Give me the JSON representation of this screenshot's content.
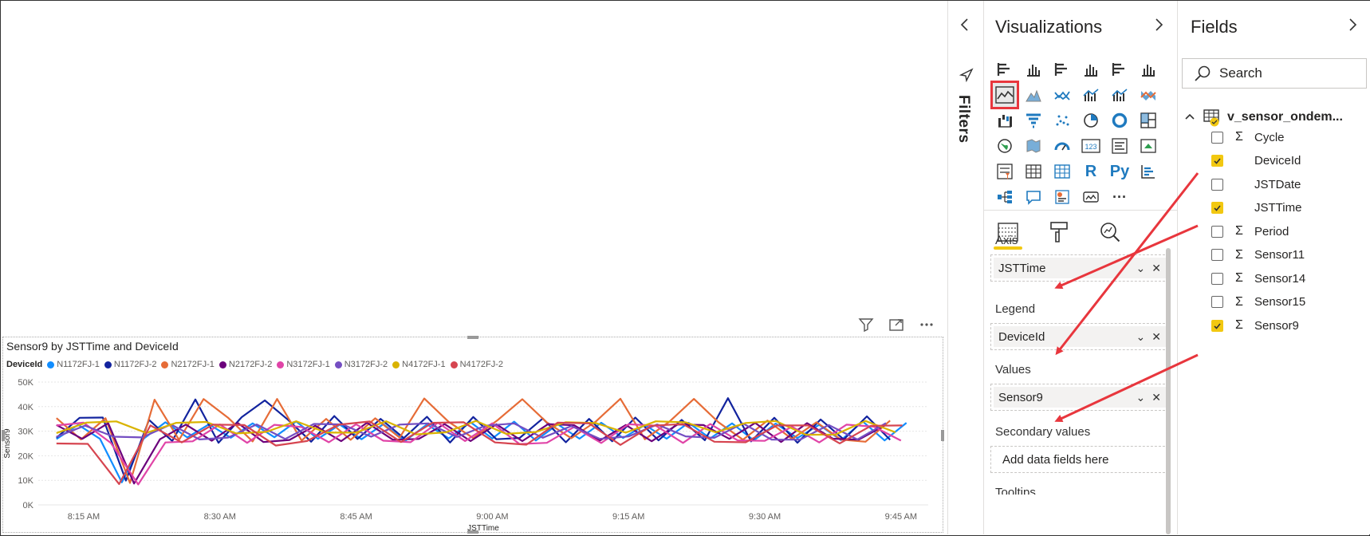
{
  "canvas": {
    "visual_header_icons": [
      "filter-icon",
      "focus-mode-icon",
      "more-options-icon"
    ]
  },
  "chart_data": {
    "type": "line",
    "title": "Sensor9 by JSTTime and DeviceId",
    "legend_title": "DeviceId",
    "legend_placement": "top-left",
    "xlabel": "JSTTime",
    "ylabel": "Sensor9",
    "y_ticks": [
      "0K",
      "10K",
      "20K",
      "30K",
      "40K",
      "50K"
    ],
    "ylim": [
      0,
      50000
    ],
    "x_ticks": [
      "8:15 AM",
      "8:30 AM",
      "8:45 AM",
      "9:00 AM",
      "9:15 AM",
      "9:30 AM",
      "9:45 AM"
    ],
    "xlim": [
      "8:10 AM",
      "9:48 AM"
    ],
    "grid": true,
    "series": [
      {
        "name": "N1172FJ-1",
        "color": "#118dff",
        "baseline": 30000,
        "amplitude": 4000
      },
      {
        "name": "N1172FJ-2",
        "color": "#12239e",
        "baseline": 31000,
        "amplitude": 6000
      },
      {
        "name": "N2172FJ-1",
        "color": "#e66c37",
        "baseline": 30500,
        "amplitude": 5000
      },
      {
        "name": "N2172FJ-2",
        "color": "#6b007b",
        "baseline": 29500,
        "amplitude": 4000
      },
      {
        "name": "N3172FJ-1",
        "color": "#e044a7",
        "baseline": 29000,
        "amplitude": 4500
      },
      {
        "name": "N3172FJ-2",
        "color": "#744ec2",
        "baseline": 30000,
        "amplitude": 3500
      },
      {
        "name": "N4172FJ-1",
        "color": "#d9b300",
        "baseline": 31500,
        "amplitude": 3000
      },
      {
        "name": "N4172FJ-2",
        "color": "#d64550",
        "baseline": 29000,
        "amplitude": 5000
      }
    ],
    "dip": {
      "time": "8:20 AM",
      "value": 8000
    }
  },
  "filters_pane": {
    "label": "Filters",
    "collapse_icon": "chevron-left-icon",
    "icon": "filter-pane-icon"
  },
  "visualizations": {
    "title": "Visualizations",
    "expand_icon": "chevron-right-icon",
    "selected_visual": "line-chart-icon",
    "icons": [
      "stacked-bar-icon",
      "stacked-column-icon",
      "clustered-bar-icon",
      "clustered-column-icon",
      "100-stacked-bar-icon",
      "100-stacked-column-icon",
      "line-chart-icon",
      "area-chart-icon",
      "stacked-area-icon",
      "line-clustered-column-icon",
      "line-stacked-column-icon",
      "ribbon-chart-icon",
      "waterfall-icon",
      "funnel-icon",
      "scatter-icon",
      "pie-chart-icon",
      "donut-chart-icon",
      "treemap-icon",
      "map-icon",
      "filled-map-icon",
      "gauge-icon",
      "card-icon",
      "multi-row-card-icon",
      "kpi-icon",
      "slicer-icon",
      "table-icon",
      "matrix-icon",
      "r-visual-icon",
      "python-visual-icon",
      "key-influencers-icon",
      "decomposition-tree-icon",
      "qa-icon",
      "smart-narrative-icon",
      "paginated-report-icon",
      "more-visuals-icon"
    ],
    "r_label": "R",
    "py_label": "Py",
    "more_label": "···",
    "tabs": [
      "fields-tab-icon",
      "format-tab-icon",
      "analytics-tab-icon"
    ],
    "wells": {
      "axis": {
        "label": "Axis",
        "field": "JSTTime"
      },
      "legend": {
        "label": "Legend",
        "field": "DeviceId"
      },
      "values": {
        "label": "Values",
        "field": "Sensor9"
      },
      "secondary": {
        "label": "Secondary values",
        "placeholder": "Add data fields here"
      },
      "tooltips": {
        "label": "Tooltips"
      }
    }
  },
  "fields": {
    "title": "Fields",
    "expand_icon": "chevron-right-icon",
    "search_placeholder": "Search",
    "table_name": "v_sensor_ondem...",
    "items": [
      {
        "name": "Cycle",
        "checked": false,
        "sigma": true
      },
      {
        "name": "DeviceId",
        "checked": true,
        "sigma": false
      },
      {
        "name": "JSTDate",
        "checked": false,
        "sigma": false
      },
      {
        "name": "JSTTime",
        "checked": true,
        "sigma": false
      },
      {
        "name": "Period",
        "checked": false,
        "sigma": true
      },
      {
        "name": "Sensor11",
        "checked": false,
        "sigma": true
      },
      {
        "name": "Sensor14",
        "checked": false,
        "sigma": true
      },
      {
        "name": "Sensor15",
        "checked": false,
        "sigma": true
      },
      {
        "name": "Sensor9",
        "checked": true,
        "sigma": true
      }
    ]
  },
  "colors": {
    "accent_yellow": "#f2c811",
    "annotation_red": "#e8363d"
  }
}
